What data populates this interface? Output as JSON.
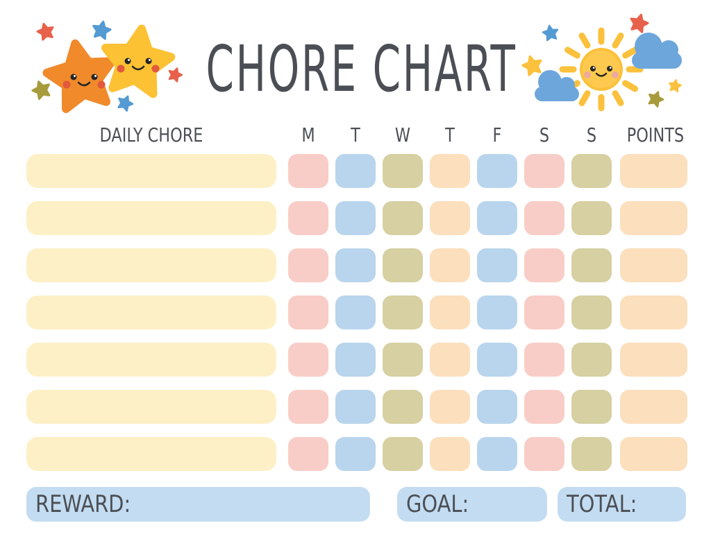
{
  "title": "CHORE CHART",
  "header": {
    "chore_label": "DAILY CHORE",
    "day_labels": [
      "M",
      "T",
      "W",
      "T",
      "F",
      "S",
      "S"
    ],
    "points_label": "POINTS"
  },
  "grid": {
    "row_count": 7,
    "day_cell_colors": [
      "pink",
      "blue",
      "olive",
      "peach",
      "blue",
      "pink",
      "olive"
    ],
    "points_cell_color": "peach"
  },
  "footer": {
    "reward_label": "REWARD:",
    "goal_label": "GOAL:",
    "total_label": "TOTAL:"
  },
  "palette": {
    "pink": "#f9cdc7",
    "blue": "#b9d5ed",
    "olive": "#d6d0a2",
    "peach": "#fcdfbd",
    "cream": "#fdf0c6",
    "footer_blue": "#c3dcf1",
    "text": "#4b4f55",
    "star_orange": "#f08a2b",
    "star_yellow": "#fcc234",
    "sun_yellow": "#fbc13c",
    "cloud_blue": "#6da6da",
    "sparkle_red": "#e8614c",
    "sparkle_blue": "#549ad3",
    "sparkle_olive": "#a89b3c",
    "cheek_red": "#e2593c",
    "cheek_pink": "#edaaa0",
    "face_dark": "#262626"
  },
  "decorations": {
    "left_icons": [
      "orange-star-icon",
      "yellow-star-icon",
      "sparkle-star-icons"
    ],
    "right_icons": [
      "sun-icon",
      "cloud-icon",
      "cloud-icon",
      "sparkle-star-icons"
    ]
  }
}
